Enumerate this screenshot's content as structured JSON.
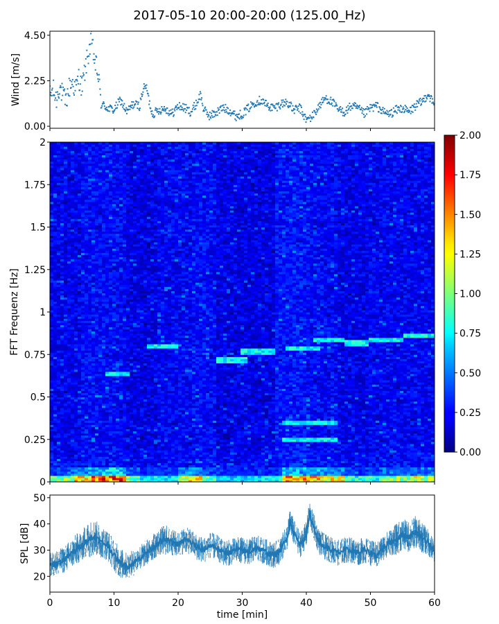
{
  "title": "2017-05-10 20:00-20:00 (125.00_Hz)",
  "chart_data": [
    {
      "type": "scatter",
      "panel": "wind",
      "ylabel": "Wind [m/s]",
      "yticks": [
        "0.00",
        "2.25",
        "4.50"
      ],
      "ylim": [
        -0.1,
        4.7
      ],
      "xlim": [
        0,
        60
      ],
      "color": "#1f77b4",
      "series": [
        {
          "x": [
            0,
            0.5,
            1,
            1.5,
            2,
            2.5,
            3,
            3.5,
            4,
            4.5,
            5,
            5.5,
            6,
            6.5,
            7,
            7.5,
            8,
            9,
            10,
            11,
            12,
            13,
            14,
            14.5,
            15,
            15.5,
            16,
            17,
            18,
            19,
            20,
            21,
            22,
            23,
            23.5,
            24,
            25,
            26,
            27,
            28,
            29,
            30,
            31,
            32,
            33,
            34,
            35,
            36,
            37,
            38,
            39,
            40,
            41,
            42,
            43,
            44,
            45,
            46,
            47,
            48,
            49,
            50,
            51,
            52,
            53,
            54,
            55,
            56,
            57,
            58,
            59,
            60
          ],
          "y": [
            1.5,
            1.8,
            1.3,
            2.0,
            1.5,
            1.2,
            1.9,
            2.2,
            1.8,
            2.4,
            1.9,
            2.8,
            3.6,
            4.2,
            3.2,
            2.6,
            1.1,
            0.9,
            0.8,
            1.3,
            0.7,
            1.1,
            1.0,
            1.8,
            2.0,
            1.2,
            0.6,
            0.8,
            0.9,
            0.6,
            1.0,
            0.9,
            0.7,
            1.2,
            1.6,
            0.8,
            0.5,
            0.7,
            0.9,
            0.8,
            0.5,
            0.6,
            0.9,
            1.2,
            1.3,
            1.0,
            0.9,
            1.1,
            1.2,
            0.8,
            0.9,
            0.3,
            0.5,
            1.0,
            1.4,
            1.2,
            0.8,
            0.7,
            1.0,
            0.9,
            0.6,
            0.9,
            1.0,
            0.7,
            0.6,
            0.8,
            0.9,
            0.7,
            1.0,
            1.2,
            1.6,
            1.0
          ]
        }
      ]
    },
    {
      "type": "heatmap",
      "panel": "spectrogram",
      "ylabel": "FFT Frequenz [Hz]",
      "yticks": [
        "0",
        "0.25",
        "0.5",
        "0.75",
        "1",
        "1.25",
        "1.5",
        "1.75",
        "2"
      ],
      "ylim": [
        0,
        2
      ],
      "xlim": [
        0,
        60
      ],
      "colormap": "jet",
      "colorbar": {
        "min": 0,
        "max": 2,
        "ticks": [
          "0.00",
          "0.25",
          "0.50",
          "0.75",
          "1.00",
          "1.25",
          "1.50",
          "1.75",
          "2.00"
        ]
      },
      "segments": [
        {
          "x": [
            0,
            5
          ],
          "level": 0.22
        },
        {
          "x": [
            5,
            10
          ],
          "level": 0.26
        },
        {
          "x": [
            10,
            12
          ],
          "level": 0.25
        },
        {
          "x": [
            12,
            17
          ],
          "level": 0.2
        },
        {
          "x": [
            17,
            22
          ],
          "level": 0.24
        },
        {
          "x": [
            22,
            26
          ],
          "level": 0.26
        },
        {
          "x": [
            26,
            35
          ],
          "level": 0.2
        },
        {
          "x": [
            35,
            40
          ],
          "level": 0.28
        },
        {
          "x": [
            40,
            45
          ],
          "level": 0.25
        },
        {
          "x": [
            45,
            50
          ],
          "level": 0.21
        },
        {
          "x": [
            50,
            60
          ],
          "level": 0.23
        }
      ],
      "bright_lines": [
        {
          "x": [
            8.5,
            12.5
          ],
          "y": 0.64
        },
        {
          "x": [
            15,
            20
          ],
          "y": 0.8
        },
        {
          "x": [
            26,
            31
          ],
          "y": 0.72
        },
        {
          "x": [
            30,
            35
          ],
          "y": 0.77
        },
        {
          "x": [
            37,
            42
          ],
          "y": 0.79
        },
        {
          "x": [
            41,
            46
          ],
          "y": 0.84
        },
        {
          "x": [
            46,
            50
          ],
          "y": 0.82
        },
        {
          "x": [
            50,
            55
          ],
          "y": 0.84
        },
        {
          "x": [
            55,
            60
          ],
          "y": 0.86
        },
        {
          "x": [
            36,
            45
          ],
          "y": 0.25
        },
        {
          "x": [
            36,
            45
          ],
          "y": 0.35
        }
      ],
      "low_band": [
        {
          "x": [
            0,
            2
          ],
          "level": 1.1
        },
        {
          "x": [
            2,
            4
          ],
          "level": 1.3
        },
        {
          "x": [
            4,
            6
          ],
          "level": 1.6
        },
        {
          "x": [
            6,
            8
          ],
          "level": 1.8
        },
        {
          "x": [
            8,
            12
          ],
          "level": 1.95
        },
        {
          "x": [
            12,
            14
          ],
          "level": 1.2
        },
        {
          "x": [
            14,
            20
          ],
          "level": 0.9
        },
        {
          "x": [
            20,
            24
          ],
          "level": 1.5
        },
        {
          "x": [
            24,
            26
          ],
          "level": 1.1
        },
        {
          "x": [
            26,
            31
          ],
          "level": 0.8
        },
        {
          "x": [
            31,
            36
          ],
          "level": 0.9
        },
        {
          "x": [
            36,
            38
          ],
          "level": 1.9
        },
        {
          "x": [
            38,
            42
          ],
          "level": 1.7
        },
        {
          "x": [
            42,
            46
          ],
          "level": 1.5
        },
        {
          "x": [
            46,
            52
          ],
          "level": 1.0
        },
        {
          "x": [
            52,
            56
          ],
          "level": 1.3
        },
        {
          "x": [
            56,
            60
          ],
          "level": 1.4
        }
      ]
    },
    {
      "type": "area",
      "panel": "spl",
      "ylabel": "SPL [dB]",
      "yticks": [
        "20",
        "30",
        "40",
        "50"
      ],
      "ylim": [
        14,
        51
      ],
      "xlabel": "time [min]",
      "xticks": [
        "0",
        "10",
        "20",
        "30",
        "40",
        "50",
        "60"
      ],
      "xlim": [
        0,
        60
      ],
      "color": "#1f77b4",
      "series": [
        {
          "x": [
            0,
            2,
            4,
            5,
            6,
            7,
            8,
            9,
            10,
            11,
            12,
            13,
            14,
            15,
            16,
            17,
            18,
            19,
            20,
            21,
            22,
            23,
            24,
            25,
            26,
            27,
            28,
            29,
            30,
            31,
            32,
            33,
            34,
            35,
            36,
            37,
            37.5,
            38,
            39,
            40,
            40.5,
            41,
            42,
            43,
            44,
            45,
            46,
            47,
            48,
            49,
            50,
            51,
            52,
            53,
            54,
            55,
            56,
            57,
            58,
            59,
            60
          ],
          "mean": [
            24,
            26,
            30,
            32,
            34,
            35,
            33,
            32,
            28,
            25,
            24,
            25,
            27,
            29,
            31,
            33,
            34,
            33,
            32,
            34,
            33,
            31,
            30,
            32,
            31,
            29,
            29,
            30,
            30,
            29,
            31,
            30,
            29,
            28,
            30,
            35,
            41,
            37,
            32,
            36,
            44,
            40,
            33,
            31,
            30,
            29,
            30,
            30,
            29,
            30,
            29,
            28,
            31,
            33,
            34,
            36,
            35,
            37,
            35,
            33,
            29
          ],
          "spread": [
            5,
            5,
            6,
            6,
            7,
            7,
            6,
            6,
            6,
            6,
            5,
            5,
            5,
            5,
            5,
            5,
            6,
            5,
            5,
            5,
            5,
            5,
            5,
            5,
            5,
            5,
            5,
            5,
            5,
            5,
            5,
            5,
            5,
            5,
            5,
            5,
            5,
            5,
            5,
            5,
            5,
            5,
            5,
            5,
            5,
            5,
            5,
            5,
            5,
            5,
            5,
            5,
            5,
            5,
            6,
            6,
            6,
            6,
            6,
            5,
            5
          ]
        }
      ]
    }
  ]
}
